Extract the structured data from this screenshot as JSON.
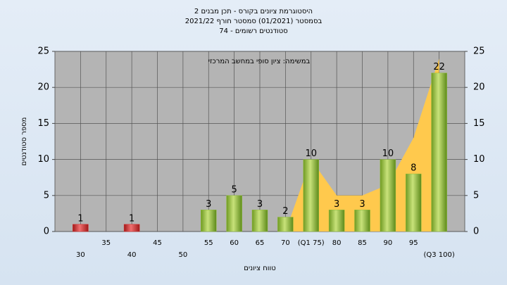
{
  "chart_data": {
    "type": "bar",
    "title": "היסטוגרמת ציונים בקורס - תכן מבנים 2",
    "subtitle": [
      "בסמסטר  (01/2021)  סמסטר חורף 2021/22",
      "סטודנטים רשומים - 74"
    ],
    "annotation": "במשימה: ציון סופי במחשב המרכזי",
    "x_label": "טווח ציונים",
    "y_label": "מספר סטודנטים",
    "categories": [
      "30",
      "35",
      "40",
      "45",
      "50",
      "55",
      "60",
      "65",
      "70",
      "(Q1 75)",
      "80",
      "85",
      "90",
      "95",
      "(Q3 100)"
    ],
    "values": [
      1,
      0,
      1,
      0,
      0,
      3,
      5,
      3,
      2,
      10,
      3,
      3,
      10,
      8,
      22
    ],
    "colors": [
      "#d92b2b",
      "#d92b2b",
      "#d92b2b",
      "#d92b2b",
      "#d92b2b",
      "#8fbc3a",
      "#8fbc3a",
      "#8fbc3a",
      "#8fbc3a",
      "#8fbc3a",
      "#8fbc3a",
      "#8fbc3a",
      "#8fbc3a",
      "#8fbc3a",
      "#8fbc3a"
    ],
    "area": {
      "color": "#ffc94d",
      "values": [
        null,
        null,
        null,
        null,
        null,
        null,
        null,
        null,
        0,
        10,
        5,
        5,
        6.5,
        13,
        24
      ]
    },
    "ylim": [
      0,
      25
    ],
    "yticks": [
      0,
      5,
      10,
      15,
      20,
      25
    ],
    "y2lim": [
      0,
      25
    ],
    "y2ticks": [
      0,
      5,
      10,
      15,
      20,
      25
    ],
    "grid": true
  }
}
